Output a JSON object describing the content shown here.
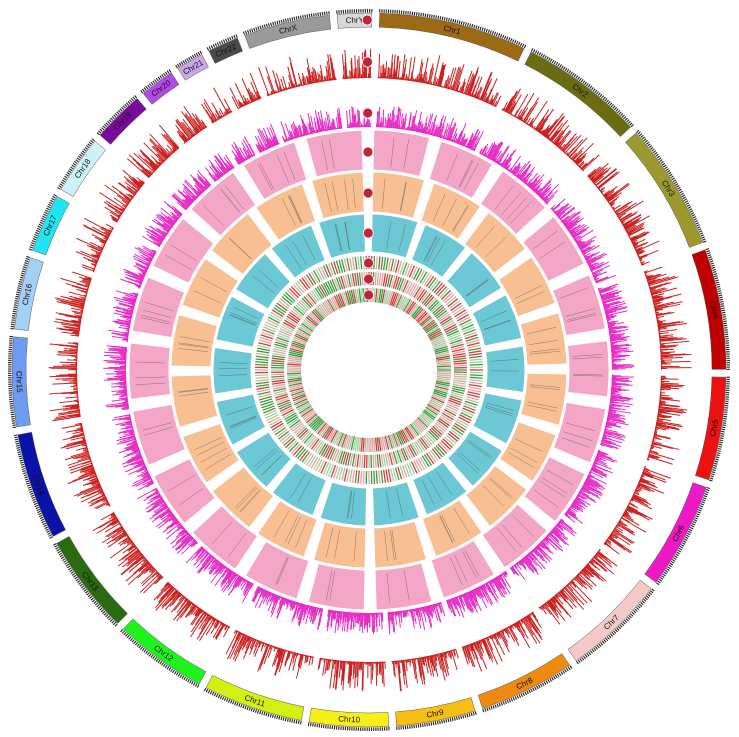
{
  "chart_data": {
    "type": "circos",
    "chromosomes": [
      {
        "name": "Chr1",
        "length": 43,
        "color": "#9c6a14"
      },
      {
        "name": "Chr2",
        "length": 36,
        "color": "#6b6b12"
      },
      {
        "name": "Chr3",
        "length": 37,
        "color": "#9c9a2e"
      },
      {
        "name": "Chr4",
        "length": 35,
        "color": "#c00000"
      },
      {
        "name": "Chr5",
        "length": 30,
        "color": "#ee1111"
      },
      {
        "name": "Chr6",
        "length": 31,
        "color": "#ee18c4"
      },
      {
        "name": "Chr7",
        "length": 30,
        "color": "#f5c9c9"
      },
      {
        "name": "Chr8",
        "length": 28,
        "color": "#ee8a10"
      },
      {
        "name": "Chr9",
        "length": 23,
        "color": "#f6c012"
      },
      {
        "name": "Chr10",
        "length": 23,
        "color": "#f8ef18"
      },
      {
        "name": "Chr11",
        "length": 29,
        "color": "#d4f012"
      },
      {
        "name": "Chr12",
        "length": 27,
        "color": "#1ef31e"
      },
      {
        "name": "Chr13",
        "length": 29,
        "color": "#2a6a10"
      },
      {
        "name": "Chr14",
        "length": 31,
        "color": "#0a12a8"
      },
      {
        "name": "Chr15",
        "length": 26,
        "color": "#6d9cf0"
      },
      {
        "name": "Chr16",
        "length": 21,
        "color": "#a4cff6"
      },
      {
        "name": "Chr17",
        "length": 17,
        "color": "#20e6f2"
      },
      {
        "name": "Chr18",
        "length": 17,
        "color": "#ccf2f8"
      },
      {
        "name": "Chr19",
        "length": 15,
        "color": "#7a0a9a"
      },
      {
        "name": "Chr20",
        "length": 10,
        "color": "#b24ae6"
      },
      {
        "name": "Chr21",
        "length": 8,
        "color": "#caa6ea"
      },
      {
        "name": "Chr22",
        "length": 9,
        "color": "#4a4a4a"
      },
      {
        "name": "ChrX",
        "length": 25,
        "color": "#9a9a9a"
      },
      {
        "name": "ChrY",
        "length": 10,
        "color": "#d8d8d8"
      }
    ],
    "tracks": [
      {
        "id": "1",
        "kind": "ideogram"
      },
      {
        "id": "2",
        "kind": "bar",
        "color": "#cc2222"
      },
      {
        "id": "3",
        "kind": "bar",
        "color": "#e62ec4"
      },
      {
        "id": "4",
        "kind": "sector",
        "color": "#f4a6c6"
      },
      {
        "id": "5",
        "kind": "sector",
        "color": "#f8bf92"
      },
      {
        "id": "6",
        "kind": "sector",
        "color": "#6cc8d4"
      },
      {
        "id": "7",
        "kind": "heat-stripes"
      },
      {
        "id": "8",
        "kind": "heat-stripes"
      },
      {
        "id": "9",
        "kind": "heat-stripes"
      }
    ],
    "stripe_colors": [
      "#d23a3a",
      "#3a9a3a",
      "#e8a0a0",
      "#a0d0a0"
    ]
  }
}
